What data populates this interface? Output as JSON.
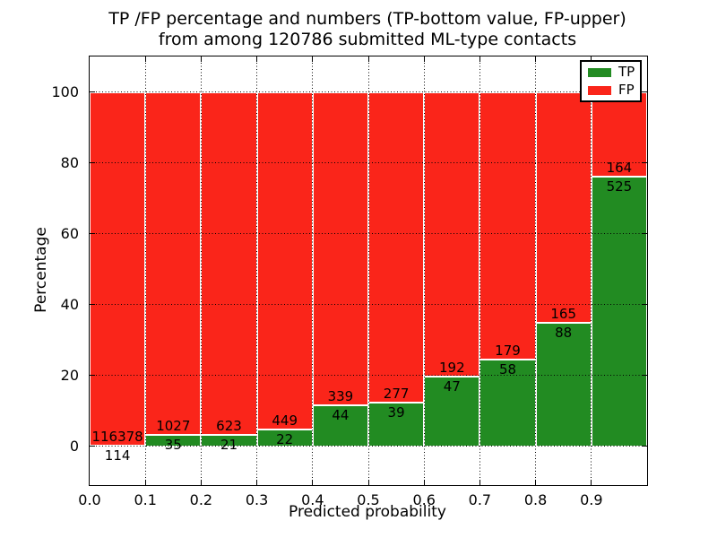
{
  "figure": {
    "title_line1": "TP /FP percentage and numbers (TP-bottom value, FP-upper)",
    "title_line2": "from among 120786 submitted ML-type contacts"
  },
  "chart_data": {
    "type": "bar",
    "mode": "stacked-percentage",
    "title": "TP /FP percentage and numbers (TP-bottom value, FP-upper) from among 120786 submitted ML-type contacts",
    "total_submitted_contacts": 120786,
    "xlabel": "Predicted probability",
    "ylabel": "Percentage",
    "xlim": [
      0.0,
      1.0
    ],
    "ylim": [
      -11,
      110
    ],
    "bin_width": 0.1,
    "bin_starts": [
      0.0,
      0.1,
      0.2,
      0.3,
      0.4,
      0.5,
      0.6,
      0.7,
      0.8,
      0.9
    ],
    "x_tick_labels": [
      "0.0",
      "0.1",
      "0.2",
      "0.3",
      "0.4",
      "0.5",
      "0.6",
      "0.7",
      "0.8",
      "0.9"
    ],
    "y_tick_values": [
      0,
      20,
      40,
      60,
      80,
      100
    ],
    "series": [
      {
        "name": "TP",
        "color": "#228b22",
        "counts": [
          114,
          35,
          21,
          22,
          44,
          39,
          47,
          58,
          88,
          525
        ]
      },
      {
        "name": "FP",
        "color": "#fa251a",
        "counts": [
          116378,
          1027,
          623,
          449,
          339,
          277,
          192,
          179,
          165,
          164
        ]
      }
    ],
    "legend": {
      "position": "upper right",
      "entries": [
        "TP",
        "FP"
      ]
    },
    "grid": {
      "style": "dotted",
      "color": "#000000"
    },
    "bar_edge_color": "#ffffff",
    "annotation_note": "FP count printed above each TP/FP boundary, TP count printed below it"
  }
}
